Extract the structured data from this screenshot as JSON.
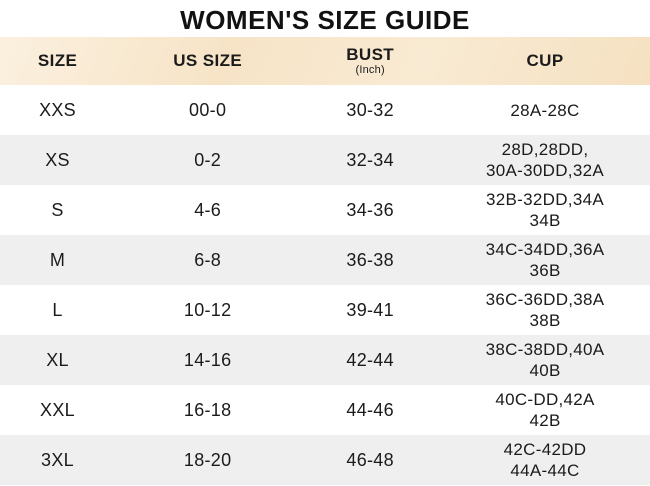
{
  "title": "WOMEN'S SIZE GUIDE",
  "header": {
    "size": "SIZE",
    "us_size": "US SIZE",
    "bust": "BUST",
    "bust_unit": "(Inch)",
    "cup": "CUP"
  },
  "colors": {
    "header_band": "#f8e6ca",
    "row_alt": "#efefef",
    "row_base": "#ffffff",
    "text": "#1b1b1b"
  },
  "chart_data": {
    "type": "table",
    "title": "WOMEN'S SIZE GUIDE",
    "columns": [
      "SIZE",
      "US SIZE",
      "BUST (Inch)",
      "CUP"
    ],
    "rows": [
      [
        "XXS",
        "00-0",
        "30-32",
        "28A-28C"
      ],
      [
        "XS",
        "0-2",
        "32-34",
        "28D,28DD,\n30A-30DD,32A"
      ],
      [
        "S",
        "4-6",
        "34-36",
        "32B-32DD,34A\n34B"
      ],
      [
        "M",
        "6-8",
        "36-38",
        "34C-34DD,36A\n36B"
      ],
      [
        "L",
        "10-12",
        "39-41",
        "36C-36DD,38A\n38B"
      ],
      [
        "XL",
        "14-16",
        "42-44",
        "38C-38DD,40A\n40B"
      ],
      [
        "XXL",
        "16-18",
        "44-46",
        "40C-DD,42A\n42B"
      ],
      [
        "3XL",
        "18-20",
        "46-48",
        "42C-42DD\n44A-44C"
      ]
    ]
  }
}
